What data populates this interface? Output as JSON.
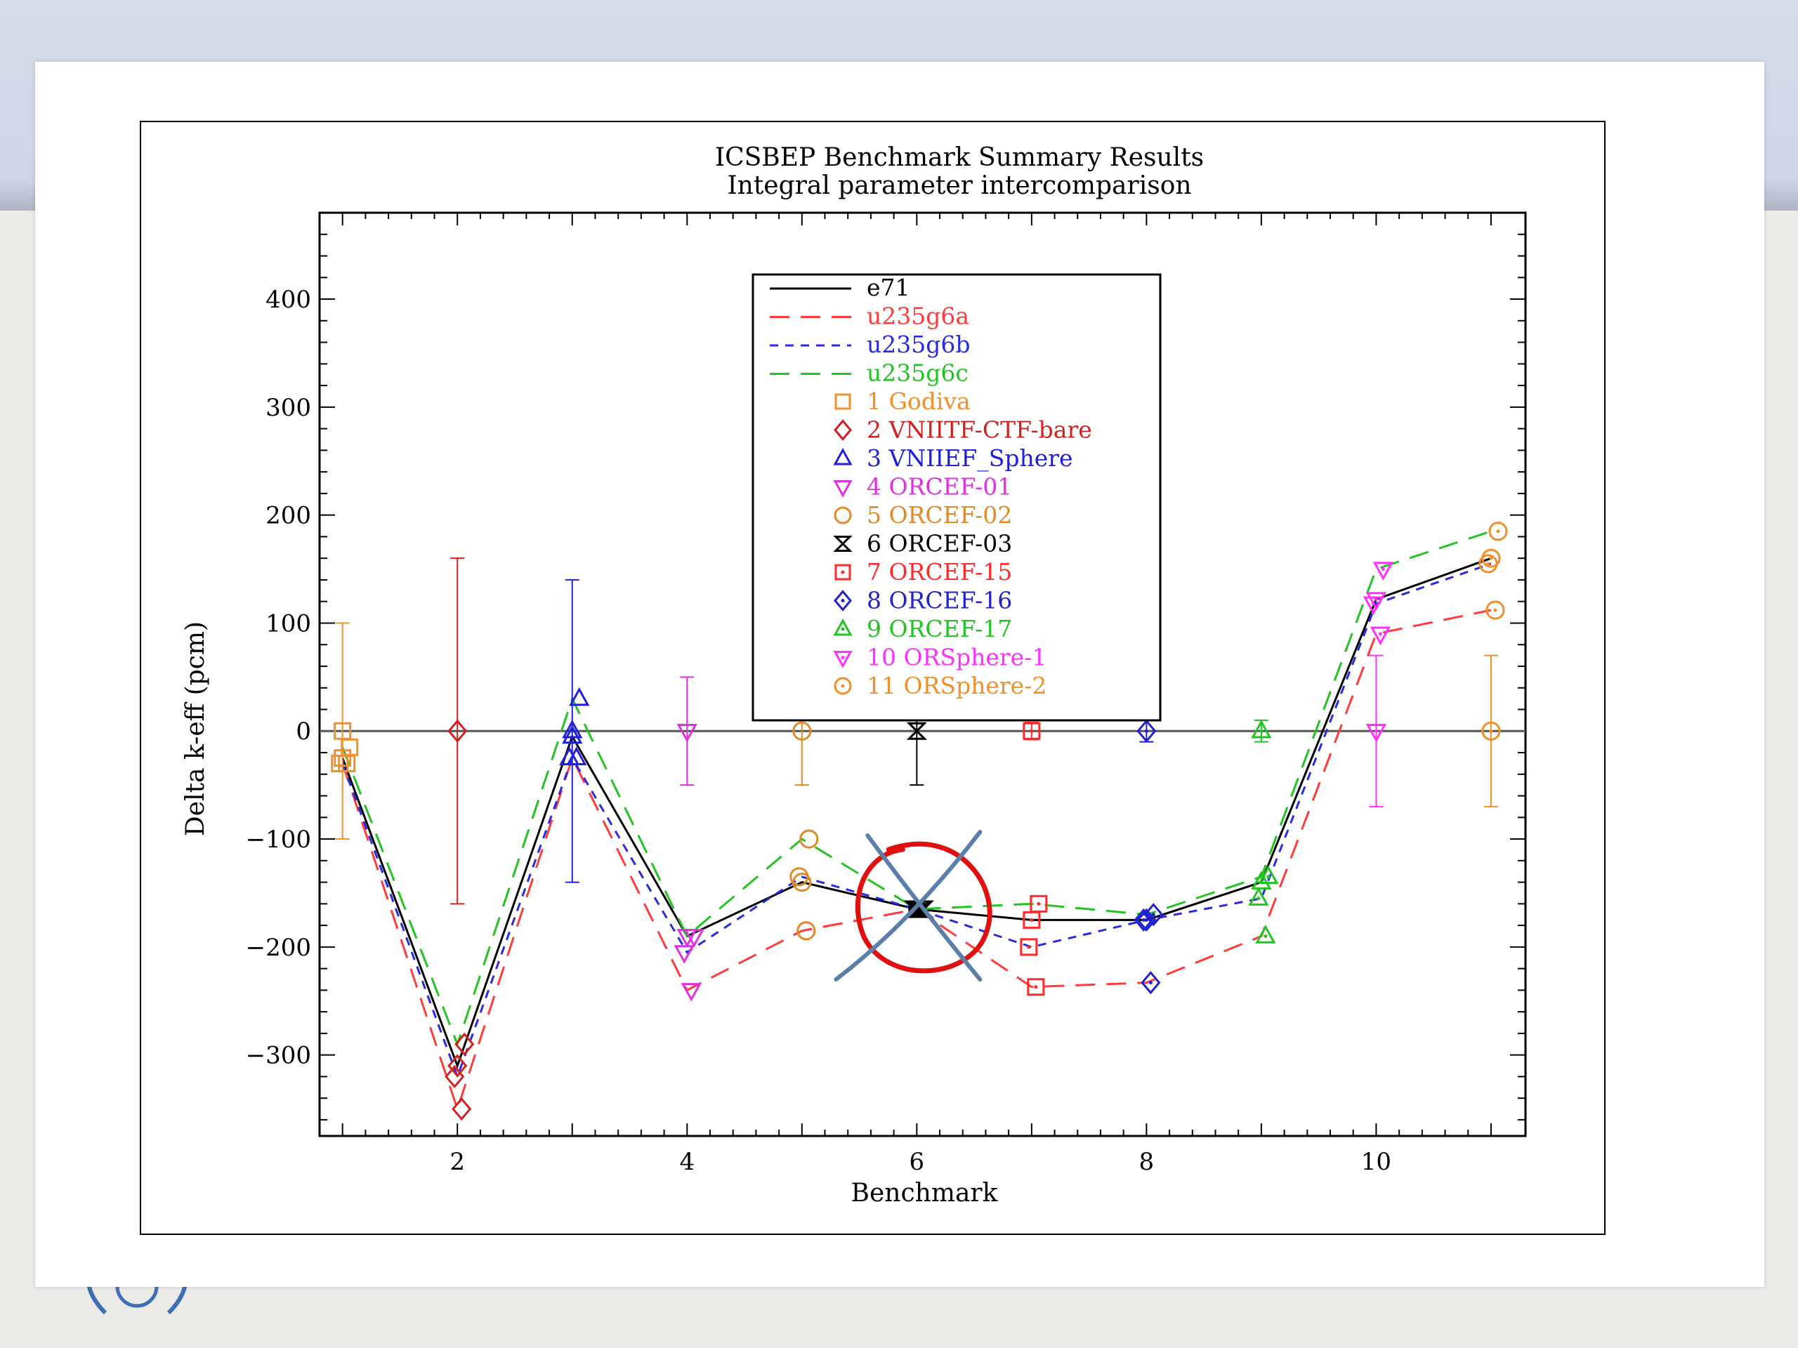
{
  "colors": {
    "e71": "#000000",
    "u235g6a": "#ff3b3b",
    "u235g6b": "#2a2ae0",
    "u235g6c": "#22c422",
    "godiva": "#f0902a",
    "vniitf": "#d22020",
    "vniief": "#2020d8",
    "orcef01": "#e030e0",
    "orcef02": "#e08a2a",
    "orcef03": "#000000",
    "orcef15": "#ff2a2a",
    "orcef16": "#2222cc",
    "orcef17": "#22c422",
    "orsphere1": "#ff30ff",
    "orsphere2": "#f0902a",
    "annotation_circle": "#e01010",
    "annotation_cross": "#5b7fa8"
  },
  "chart_data": {
    "type": "line",
    "title": "ICSBEP Benchmark Summary Results",
    "subtitle": "Integral parameter intercomparison",
    "xlabel": "Benchmark",
    "ylabel": "Delta k-eff (pcm)",
    "xlim": [
      0.8,
      11.3
    ],
    "ylim": [
      -375,
      480
    ],
    "xticks": [
      2,
      4,
      6,
      8,
      10
    ],
    "xtick_labels": [
      "2",
      "4",
      "6",
      "8",
      "10"
    ],
    "yticks": [
      -300,
      -200,
      -100,
      0,
      100,
      200,
      300,
      400
    ],
    "ytick_labels": [
      "−300",
      "−200",
      "−100",
      "0",
      "100",
      "200",
      "300",
      "400"
    ],
    "legend_position": "top-center",
    "x": [
      1,
      2,
      3,
      4,
      5,
      6,
      7,
      8,
      9,
      10,
      11
    ],
    "series": [
      {
        "name": "e71",
        "style": "solid",
        "color_key": "e71",
        "values": [
          -25,
          -310,
          -5,
          -190,
          -140,
          -165,
          -175,
          -175,
          -140,
          122,
          160
        ]
      },
      {
        "name": "u235g6a",
        "style": "long-dash",
        "color_key": "u235g6a",
        "values": [
          -30,
          -350,
          -25,
          -240,
          -185,
          -165,
          -237,
          -233,
          -190,
          90,
          112
        ]
      },
      {
        "name": "u235g6b",
        "style": "short-dash",
        "color_key": "u235g6b",
        "values": [
          -30,
          -320,
          -25,
          -205,
          -135,
          -165,
          -200,
          -175,
          -155,
          118,
          155
        ]
      },
      {
        "name": "u235g6c",
        "style": "long-dash",
        "color_key": "u235g6c",
        "values": [
          -15,
          -290,
          30,
          -190,
          -100,
          -165,
          -160,
          -170,
          -135,
          150,
          185
        ]
      }
    ],
    "benchmarks": [
      {
        "label": "1 Godiva",
        "marker": "square",
        "color_key": "godiva",
        "x": 1,
        "exp": 0,
        "err": 100,
        "calc": [
          -25,
          -30,
          -30,
          -15
        ]
      },
      {
        "label": "2 VNIITF-CTF-bare",
        "marker": "diamond",
        "color_key": "vniitf",
        "x": 2,
        "exp": 0,
        "err": 160,
        "calc": [
          -310,
          -350,
          -320,
          -290
        ]
      },
      {
        "label": "3 VNIIEF_Sphere",
        "marker": "triangle-up",
        "color_key": "vniief",
        "x": 3,
        "exp": 0,
        "err": 140,
        "calc": [
          -5,
          -25,
          -25,
          30
        ]
      },
      {
        "label": "4 ORCEF-01",
        "marker": "triangle-down",
        "color_key": "orcef01",
        "x": 4,
        "exp": 0,
        "err": 50,
        "calc": [
          -190,
          -240,
          -205,
          -190
        ]
      },
      {
        "label": "5 ORCEF-02",
        "marker": "circle",
        "color_key": "orcef02",
        "x": 5,
        "exp": 0,
        "err": 50,
        "calc": [
          -140,
          -185,
          -135,
          -100
        ]
      },
      {
        "label": "6 ORCEF-03",
        "marker": "hourglass",
        "color_key": "orcef03",
        "x": 6,
        "exp": 0,
        "err": 50,
        "calc": [
          -165,
          -165,
          -165,
          -165
        ]
      },
      {
        "label": "7 ORCEF-15",
        "marker": "dotted-square",
        "color_key": "orcef15",
        "x": 7,
        "exp": 0,
        "err": 8,
        "calc": [
          -175,
          -237,
          -200,
          -160
        ]
      },
      {
        "label": "8 ORCEF-16",
        "marker": "dotted-diamond",
        "color_key": "orcef16",
        "x": 8,
        "exp": 0,
        "err": 10,
        "calc": [
          -175,
          -233,
          -175,
          -170
        ]
      },
      {
        "label": "9 ORCEF-17",
        "marker": "dotted-triangle-up",
        "color_key": "orcef17",
        "x": 9,
        "exp": 0,
        "err": 10,
        "calc": [
          -140,
          -190,
          -155,
          -135
        ]
      },
      {
        "label": "10 ORSphere-1",
        "marker": "dotted-triangle-down",
        "color_key": "orsphere1",
        "x": 10,
        "exp": 0,
        "err": 70,
        "calc": [
          122,
          90,
          118,
          150
        ]
      },
      {
        "label": "11 ORSphere-2",
        "marker": "dotted-circle",
        "color_key": "orsphere2",
        "x": 11,
        "exp": 0,
        "err": 70,
        "calc": [
          160,
          112,
          155,
          185
        ]
      }
    ]
  }
}
